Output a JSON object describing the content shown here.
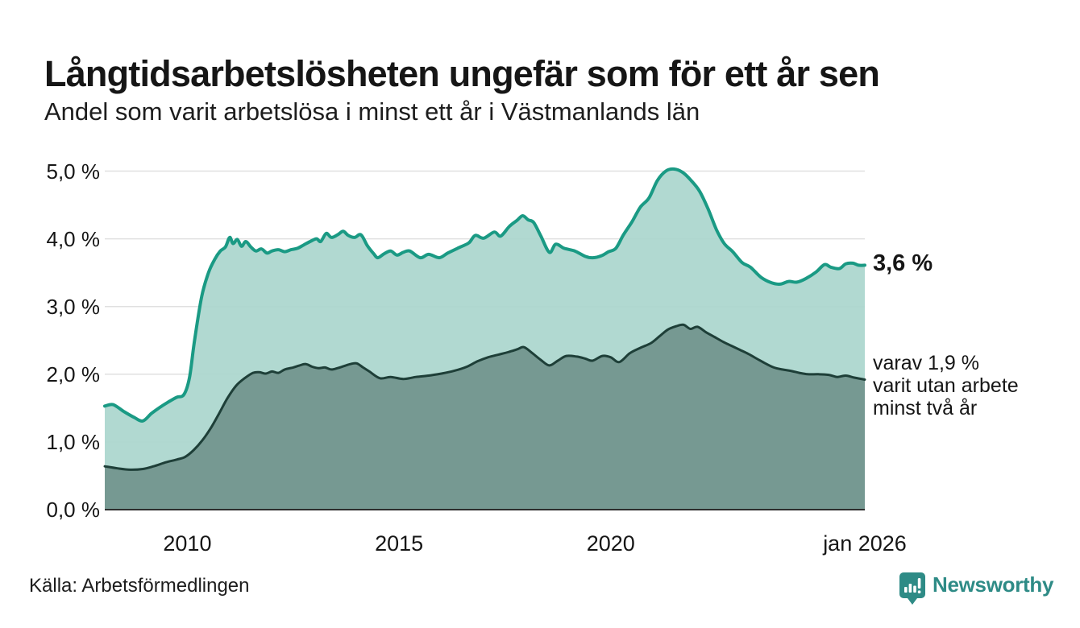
{
  "header": {
    "title": "Långtidsarbetslösheten ungefär som för ett år sen",
    "subtitle": "Andel som varit arbetslösa i minst ett år i Västmanlands län"
  },
  "footer": {
    "source": "Källa: Arbetsförmedlingen",
    "brand_name": "Newsworthy",
    "brand_color": "#2e8b86"
  },
  "chart_data": {
    "type": "area",
    "title": "Långtidsarbetslösheten ungefär som för ett år sen",
    "subtitle": "Andel som varit arbetslösa i minst ett år i Västmanlands län",
    "xlabel": "",
    "ylabel": "",
    "x_range": [
      2008.05,
      2026.0
    ],
    "y_range": [
      0,
      5
    ],
    "grid": true,
    "grid_color": "#e0e0e0",
    "axis_line_color": "#2e2e2e",
    "legend_position": "end-labels-right",
    "yticks": [
      {
        "v": 5,
        "label": "5,0 %"
      },
      {
        "v": 4,
        "label": "4,0 %"
      },
      {
        "v": 3,
        "label": "3,0 %"
      },
      {
        "v": 2,
        "label": "2,0 %"
      },
      {
        "v": 1,
        "label": "1,0 %"
      },
      {
        "v": 0,
        "label": "0,0 %"
      }
    ],
    "xticks": [
      {
        "v": 2010.0,
        "label": "2010"
      },
      {
        "v": 2015.0,
        "label": "2015"
      },
      {
        "v": 2020.0,
        "label": "2020"
      },
      {
        "v": 2026.0,
        "label": "jan 2026"
      }
    ],
    "series": [
      {
        "name": "Arbetslösa minst ett år",
        "line_color": "#1a9a84",
        "fill_color": "#abd6ce",
        "line_width": 4,
        "end_value": 3.6,
        "end_label": "3,6 %",
        "points": [
          [
            2008.05,
            1.53
          ],
          [
            2008.25,
            1.55
          ],
          [
            2008.5,
            1.45
          ],
          [
            2008.75,
            1.36
          ],
          [
            2008.95,
            1.31
          ],
          [
            2009.15,
            1.42
          ],
          [
            2009.35,
            1.51
          ],
          [
            2009.55,
            1.59
          ],
          [
            2009.75,
            1.66
          ],
          [
            2009.92,
            1.7
          ],
          [
            2010.05,
            1.95
          ],
          [
            2010.17,
            2.5
          ],
          [
            2010.34,
            3.15
          ],
          [
            2010.5,
            3.5
          ],
          [
            2010.65,
            3.7
          ],
          [
            2010.78,
            3.82
          ],
          [
            2010.9,
            3.88
          ],
          [
            2011.0,
            4.02
          ],
          [
            2011.08,
            3.93
          ],
          [
            2011.18,
            3.99
          ],
          [
            2011.28,
            3.89
          ],
          [
            2011.38,
            3.96
          ],
          [
            2011.5,
            3.88
          ],
          [
            2011.62,
            3.82
          ],
          [
            2011.75,
            3.85
          ],
          [
            2011.88,
            3.79
          ],
          [
            2012.0,
            3.82
          ],
          [
            2012.15,
            3.84
          ],
          [
            2012.3,
            3.81
          ],
          [
            2012.45,
            3.84
          ],
          [
            2012.6,
            3.86
          ],
          [
            2012.75,
            3.91
          ],
          [
            2012.9,
            3.96
          ],
          [
            2013.05,
            4.0
          ],
          [
            2013.15,
            3.96
          ],
          [
            2013.28,
            4.08
          ],
          [
            2013.4,
            4.02
          ],
          [
            2013.55,
            4.06
          ],
          [
            2013.68,
            4.11
          ],
          [
            2013.8,
            4.05
          ],
          [
            2013.95,
            4.02
          ],
          [
            2014.1,
            4.06
          ],
          [
            2014.25,
            3.9
          ],
          [
            2014.4,
            3.78
          ],
          [
            2014.5,
            3.72
          ],
          [
            2014.65,
            3.78
          ],
          [
            2014.8,
            3.82
          ],
          [
            2014.95,
            3.76
          ],
          [
            2015.1,
            3.8
          ],
          [
            2015.25,
            3.82
          ],
          [
            2015.5,
            3.72
          ],
          [
            2015.7,
            3.77
          ],
          [
            2015.95,
            3.72
          ],
          [
            2016.15,
            3.79
          ],
          [
            2016.45,
            3.88
          ],
          [
            2016.65,
            3.94
          ],
          [
            2016.8,
            4.05
          ],
          [
            2017.0,
            4.01
          ],
          [
            2017.25,
            4.1
          ],
          [
            2017.4,
            4.04
          ],
          [
            2017.6,
            4.18
          ],
          [
            2017.78,
            4.27
          ],
          [
            2017.92,
            4.34
          ],
          [
            2018.05,
            4.28
          ],
          [
            2018.18,
            4.24
          ],
          [
            2018.35,
            4.04
          ],
          [
            2018.55,
            3.8
          ],
          [
            2018.7,
            3.92
          ],
          [
            2018.9,
            3.86
          ],
          [
            2019.15,
            3.82
          ],
          [
            2019.4,
            3.74
          ],
          [
            2019.58,
            3.72
          ],
          [
            2019.78,
            3.75
          ],
          [
            2019.95,
            3.81
          ],
          [
            2020.12,
            3.86
          ],
          [
            2020.3,
            4.06
          ],
          [
            2020.5,
            4.25
          ],
          [
            2020.7,
            4.47
          ],
          [
            2020.9,
            4.6
          ],
          [
            2021.1,
            4.86
          ],
          [
            2021.3,
            5.0
          ],
          [
            2021.5,
            5.03
          ],
          [
            2021.7,
            4.98
          ],
          [
            2021.9,
            4.86
          ],
          [
            2022.1,
            4.7
          ],
          [
            2022.3,
            4.44
          ],
          [
            2022.5,
            4.13
          ],
          [
            2022.68,
            3.93
          ],
          [
            2022.88,
            3.81
          ],
          [
            2023.1,
            3.65
          ],
          [
            2023.3,
            3.58
          ],
          [
            2023.55,
            3.43
          ],
          [
            2023.8,
            3.35
          ],
          [
            2024.0,
            3.33
          ],
          [
            2024.2,
            3.37
          ],
          [
            2024.4,
            3.36
          ],
          [
            2024.6,
            3.41
          ],
          [
            2024.85,
            3.51
          ],
          [
            2025.05,
            3.62
          ],
          [
            2025.2,
            3.58
          ],
          [
            2025.4,
            3.56
          ],
          [
            2025.55,
            3.63
          ],
          [
            2025.72,
            3.64
          ],
          [
            2025.85,
            3.61
          ],
          [
            2026.0,
            3.61
          ]
        ]
      },
      {
        "name": "Utan arbete minst två år",
        "line_color": "#1e3f38",
        "fill_color": "#74978f",
        "line_width": 3,
        "end_value": 1.9,
        "end_label_lines": [
          "varav 1,9 %",
          "varit utan arbete",
          "minst två år"
        ],
        "points": [
          [
            2008.05,
            0.64
          ],
          [
            2008.35,
            0.61
          ],
          [
            2008.65,
            0.59
          ],
          [
            2008.95,
            0.6
          ],
          [
            2009.2,
            0.64
          ],
          [
            2009.5,
            0.7
          ],
          [
            2009.75,
            0.74
          ],
          [
            2009.95,
            0.78
          ],
          [
            2010.15,
            0.88
          ],
          [
            2010.35,
            1.02
          ],
          [
            2010.55,
            1.2
          ],
          [
            2010.75,
            1.42
          ],
          [
            2010.95,
            1.65
          ],
          [
            2011.15,
            1.83
          ],
          [
            2011.35,
            1.94
          ],
          [
            2011.55,
            2.02
          ],
          [
            2011.7,
            2.03
          ],
          [
            2011.85,
            2.01
          ],
          [
            2012.0,
            2.04
          ],
          [
            2012.15,
            2.02
          ],
          [
            2012.3,
            2.07
          ],
          [
            2012.5,
            2.1
          ],
          [
            2012.65,
            2.13
          ],
          [
            2012.8,
            2.15
          ],
          [
            2012.95,
            2.11
          ],
          [
            2013.1,
            2.09
          ],
          [
            2013.25,
            2.1
          ],
          [
            2013.4,
            2.07
          ],
          [
            2013.55,
            2.09
          ],
          [
            2013.7,
            2.12
          ],
          [
            2013.85,
            2.15
          ],
          [
            2014.0,
            2.16
          ],
          [
            2014.15,
            2.1
          ],
          [
            2014.3,
            2.04
          ],
          [
            2014.55,
            1.94
          ],
          [
            2014.8,
            1.96
          ],
          [
            2015.1,
            1.93
          ],
          [
            2015.4,
            1.96
          ],
          [
            2015.7,
            1.98
          ],
          [
            2016.0,
            2.01
          ],
          [
            2016.3,
            2.05
          ],
          [
            2016.6,
            2.11
          ],
          [
            2016.85,
            2.19
          ],
          [
            2017.1,
            2.25
          ],
          [
            2017.35,
            2.29
          ],
          [
            2017.6,
            2.33
          ],
          [
            2017.8,
            2.37
          ],
          [
            2017.95,
            2.4
          ],
          [
            2018.15,
            2.31
          ],
          [
            2018.35,
            2.21
          ],
          [
            2018.55,
            2.13
          ],
          [
            2018.75,
            2.2
          ],
          [
            2018.95,
            2.27
          ],
          [
            2019.2,
            2.26
          ],
          [
            2019.4,
            2.23
          ],
          [
            2019.57,
            2.2
          ],
          [
            2019.8,
            2.27
          ],
          [
            2020.0,
            2.25
          ],
          [
            2020.2,
            2.18
          ],
          [
            2020.45,
            2.31
          ],
          [
            2020.7,
            2.39
          ],
          [
            2020.95,
            2.46
          ],
          [
            2021.15,
            2.56
          ],
          [
            2021.35,
            2.66
          ],
          [
            2021.55,
            2.71
          ],
          [
            2021.72,
            2.73
          ],
          [
            2021.88,
            2.67
          ],
          [
            2022.05,
            2.7
          ],
          [
            2022.25,
            2.62
          ],
          [
            2022.45,
            2.55
          ],
          [
            2022.65,
            2.48
          ],
          [
            2022.85,
            2.42
          ],
          [
            2023.05,
            2.36
          ],
          [
            2023.25,
            2.3
          ],
          [
            2023.45,
            2.23
          ],
          [
            2023.65,
            2.16
          ],
          [
            2023.85,
            2.1
          ],
          [
            2024.05,
            2.07
          ],
          [
            2024.25,
            2.05
          ],
          [
            2024.45,
            2.02
          ],
          [
            2024.65,
            2.0
          ],
          [
            2024.9,
            2.0
          ],
          [
            2025.15,
            1.99
          ],
          [
            2025.35,
            1.96
          ],
          [
            2025.55,
            1.98
          ],
          [
            2025.75,
            1.95
          ],
          [
            2026.0,
            1.92
          ]
        ]
      }
    ]
  }
}
